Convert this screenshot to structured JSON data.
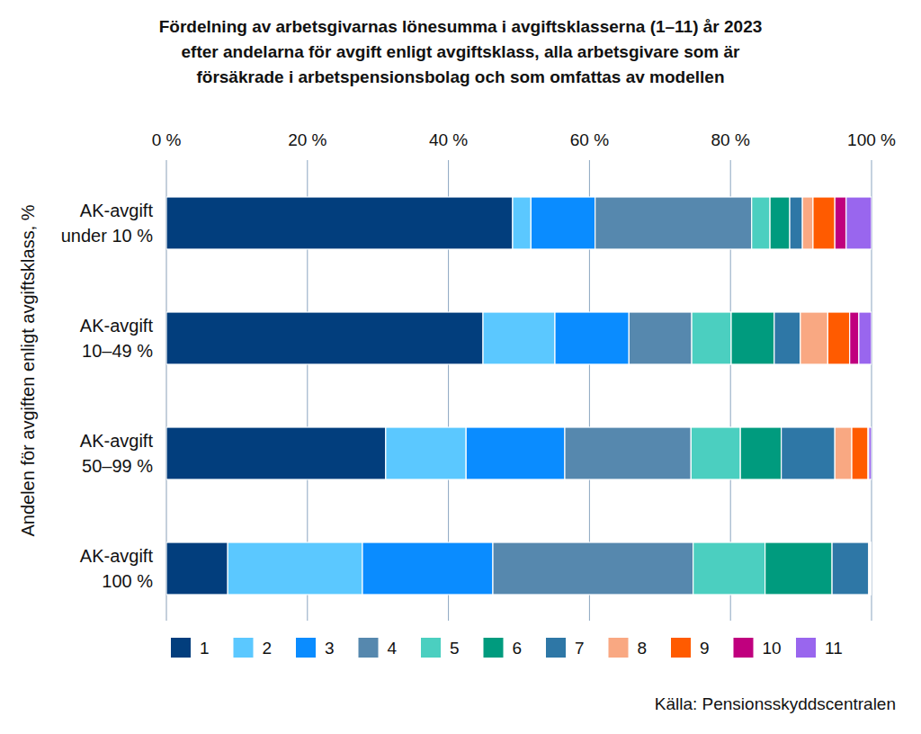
{
  "chart_data": {
    "type": "bar",
    "orientation": "horizontal",
    "stacked": true,
    "grid": true,
    "legend": "bottom",
    "title": "Fördelning av arbetsgivarnas lönesumma i avgiftsklasserna (1–11) år 2023\nefter andelarna för avgift enligt avgiftsklass, alla arbetsgivare som är\nförsäkrade i arbetspensionsbolag och som omfattas av modellen",
    "y_label": "Andelen för avgiften enligt avgiftsklass, %",
    "source": "Källa: Pensionsskyddscentralen",
    "categories": [
      "AK-avgift\nunder 10 %",
      "AK-avgift\n10–49 %",
      "AK-avgift\n50–99 %",
      "AK-avgift\n100 %"
    ],
    "xlim": [
      0,
      100
    ],
    "xticks": [
      {
        "value": 0,
        "label": "0 %"
      },
      {
        "value": 20,
        "label": "20 %"
      },
      {
        "value": 40,
        "label": "40 %"
      },
      {
        "value": 60,
        "label": "60 %"
      },
      {
        "value": 80,
        "label": "80 %"
      },
      {
        "value": 100,
        "label": "100 %"
      }
    ],
    "series": [
      {
        "name": "1",
        "color": "#023e7d",
        "values": [
          49.1,
          44.9,
          31.1,
          8.7
        ]
      },
      {
        "name": "2",
        "color": "#5bc8ff",
        "values": [
          2.6,
          10.2,
          11.4,
          19.1
        ]
      },
      {
        "name": "3",
        "color": "#0a8cff",
        "values": [
          9.1,
          10.5,
          14.0,
          18.5
        ]
      },
      {
        "name": "4",
        "color": "#5688ae",
        "values": [
          22.2,
          8.9,
          17.9,
          28.4
        ]
      },
      {
        "name": "5",
        "color": "#4bcfc0",
        "values": [
          2.6,
          5.6,
          7.0,
          10.2
        ]
      },
      {
        "name": "6",
        "color": "#009b7e",
        "values": [
          2.8,
          6.1,
          5.8,
          9.5
        ]
      },
      {
        "name": "7",
        "color": "#2e77a6",
        "values": [
          1.8,
          3.7,
          7.6,
          5.2
        ]
      },
      {
        "name": "8",
        "color": "#f9a882",
        "values": [
          1.5,
          3.9,
          2.4,
          0.1
        ]
      },
      {
        "name": "9",
        "color": "#ff5b00",
        "values": [
          3.1,
          3.1,
          2.3,
          0.1
        ]
      },
      {
        "name": "10",
        "color": "#c0007e",
        "values": [
          1.6,
          1.3,
          0.1,
          0.1
        ]
      },
      {
        "name": "11",
        "color": "#9966ee",
        "values": [
          3.6,
          1.8,
          0.4,
          0.1
        ]
      }
    ]
  }
}
